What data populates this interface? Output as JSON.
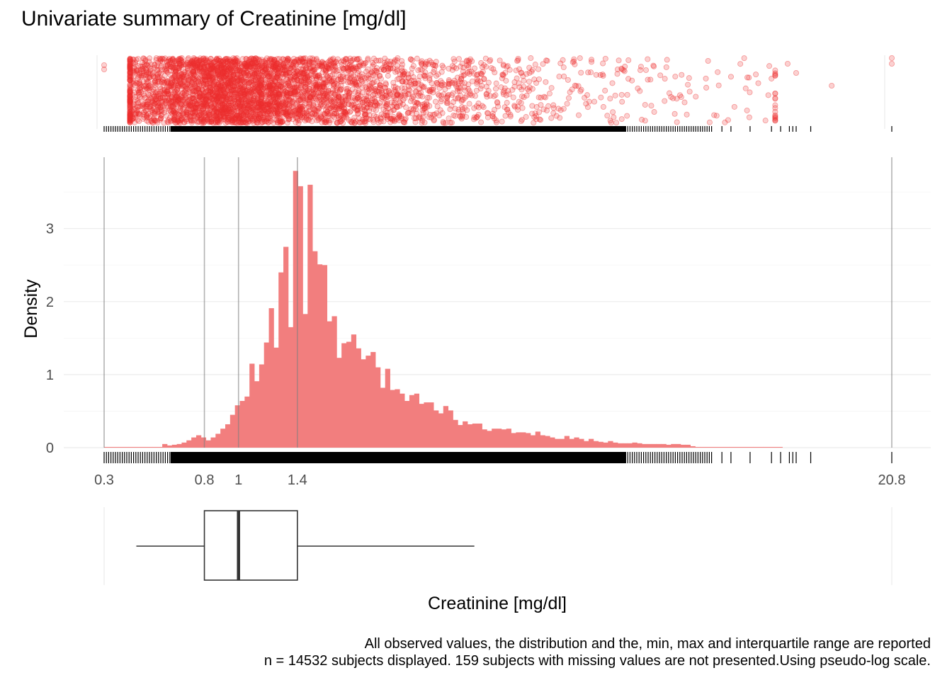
{
  "chart_data": {
    "type": "bar",
    "title": "Univariate summary of Creatinine [mg/dl]",
    "xlabel": "Creatinine [mg/dl]",
    "ylabel": "Density",
    "scale": "pseudo-log",
    "colors": {
      "fill": "#f27e7e",
      "points": "#ee2f2f",
      "reference_line": "#a6a6a6",
      "grid": "#ebebeb",
      "rug": "#000000"
    },
    "x_ticks": [
      {
        "value": 0.3,
        "label": "0.3"
      },
      {
        "value": 0.8,
        "label": "0.8"
      },
      {
        "value": 1,
        "label": "1"
      },
      {
        "value": 1.4,
        "label": "1.4"
      },
      {
        "value": 20.8,
        "label": "20.8"
      }
    ],
    "y_ticks": [
      {
        "value": 0,
        "label": "0"
      },
      {
        "value": 1,
        "label": "1"
      },
      {
        "value": 2,
        "label": "2"
      },
      {
        "value": 3,
        "label": "3"
      }
    ],
    "ylim": [
      0,
      3.95
    ],
    "reference_lines": [
      0.3,
      0.8,
      1,
      1.4,
      20.8
    ],
    "summary": {
      "min": 0.3,
      "q1": 0.8,
      "median": 1,
      "q3": 1.4,
      "max": 20.8,
      "whisker_low": 0.45,
      "whisker_high": 3.3
    },
    "histogram": {
      "x_start": 0.3,
      "x_end": 12.9,
      "densities": [
        0.01,
        0.01,
        0.01,
        0.01,
        0.01,
        0.01,
        0.01,
        0.01,
        0.01,
        0.01,
        0.01,
        0.01,
        0.05,
        0.03,
        0.04,
        0.05,
        0.07,
        0.1,
        0.14,
        0.17,
        0.14,
        0.1,
        0.14,
        0.19,
        0.26,
        0.32,
        0.45,
        0.58,
        0.64,
        0.7,
        1.15,
        0.91,
        1.14,
        1.44,
        1.91,
        1.37,
        2.4,
        2.75,
        1.65,
        3.79,
        3.58,
        1.83,
        3.6,
        2.69,
        2.51,
        2.5,
        1.73,
        1.8,
        1.23,
        1.43,
        1.45,
        1.55,
        1.36,
        1.21,
        1.26,
        1.31,
        1.1,
        0.82,
        1.08,
        0.79,
        0.8,
        0.74,
        0.64,
        0.72,
        0.74,
        0.6,
        0.62,
        0.62,
        0.51,
        0.47,
        0.57,
        0.51,
        0.38,
        0.31,
        0.36,
        0.32,
        0.33,
        0.33,
        0.25,
        0.23,
        0.26,
        0.26,
        0.25,
        0.26,
        0.2,
        0.21,
        0.21,
        0.2,
        0.17,
        0.22,
        0.17,
        0.16,
        0.14,
        0.12,
        0.12,
        0.16,
        0.12,
        0.14,
        0.12,
        0.09,
        0.12,
        0.09,
        0.08,
        0.07,
        0.09,
        0.07,
        0.06,
        0.06,
        0.06,
        0.07,
        0.06,
        0.05,
        0.05,
        0.05,
        0.05,
        0.05,
        0.04,
        0.05,
        0.05,
        0.04,
        0.04,
        0.02,
        0.01,
        0.01,
        0.01,
        0.01,
        0.01,
        0.01,
        0.01,
        0.01,
        0.01,
        0.01,
        0.01,
        0.01,
        0.01,
        0.01,
        0.01,
        0.01,
        0.01,
        0.01
      ]
    }
  },
  "caption": {
    "line1": "All observed values, the distribution and the, min, max and interquartile range are reported",
    "line2": "n = 14532 subjects displayed. 159 subjects with missing values are not presented.Using pseudo-log scale."
  }
}
